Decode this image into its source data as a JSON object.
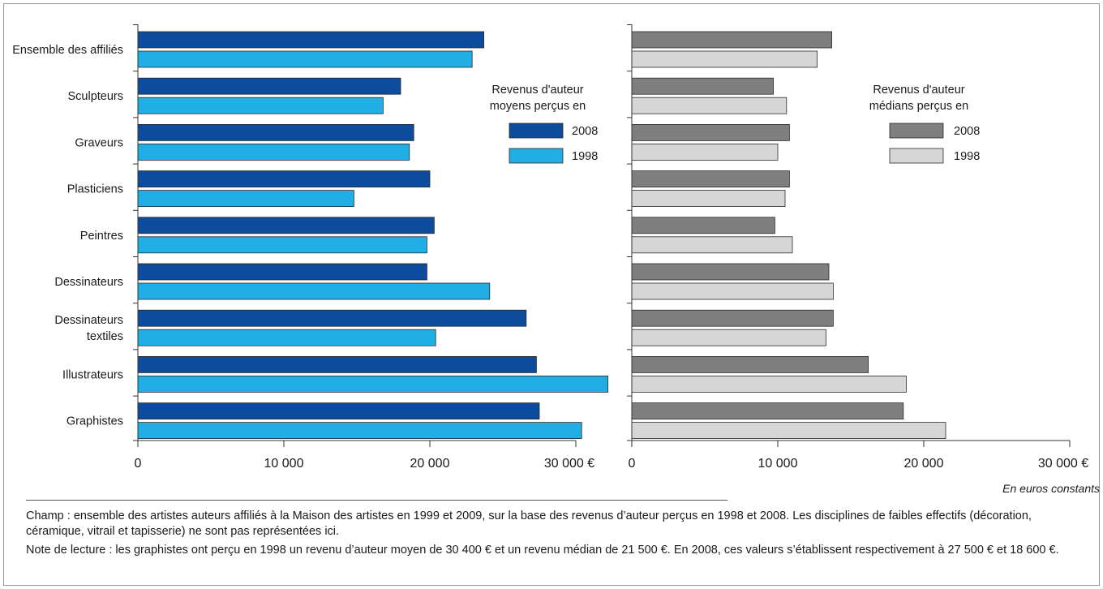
{
  "chart_data": [
    {
      "type": "bar",
      "orientation": "horizontal",
      "title": "",
      "xlabel": "",
      "ylabel": "",
      "categories": [
        "Ensemble des affiliés",
        "Sculpteurs",
        "Graveurs",
        "Plasticiens",
        "Peintres",
        "Dessinateurs",
        "Dessinateurs textiles",
        "Illustrateurs",
        "Graphistes"
      ],
      "category_lines": [
        [
          "Ensemble des affiliés"
        ],
        [
          "Sculpteurs"
        ],
        [
          "Graveurs"
        ],
        [
          "Plasticiens"
        ],
        [
          "Peintres"
        ],
        [
          "Dessinateurs"
        ],
        [
          "Dessinateurs",
          "textiles"
        ],
        [
          "Illustrateurs"
        ],
        [
          "Graphistes"
        ]
      ],
      "legend_title": [
        "Revenus d'auteur",
        "moyens perçus en"
      ],
      "legend_position": "top-right",
      "series": [
        {
          "name": "2008",
          "color": "#0d4c9c",
          "values": [
            23700,
            18000,
            18900,
            20000,
            20300,
            19800,
            26600,
            27300,
            27500
          ]
        },
        {
          "name": "1998",
          "color": "#20aee4",
          "values": [
            22900,
            16800,
            18600,
            14800,
            19800,
            24100,
            20400,
            32200,
            30400
          ]
        }
      ],
      "xlim": [
        0,
        30000
      ],
      "xticks": [
        0,
        10000,
        20000,
        30000
      ],
      "xtick_labels": [
        "0",
        "10 000",
        "20 000",
        "30 000 €"
      ]
    },
    {
      "type": "bar",
      "orientation": "horizontal",
      "title": "",
      "xlabel": "",
      "ylabel": "",
      "categories": [
        "Ensemble des affiliés",
        "Sculpteurs",
        "Graveurs",
        "Plasticiens",
        "Peintres",
        "Dessinateurs",
        "Dessinateurs textiles",
        "Illustrateurs",
        "Graphistes"
      ],
      "legend_title": [
        "Revenus d'auteur",
        "médians perçus en"
      ],
      "legend_position": "top-right",
      "series": [
        {
          "name": "2008",
          "color": "#7f7f7f",
          "values": [
            13700,
            9700,
            10800,
            10800,
            9800,
            13500,
            13800,
            16200,
            18600
          ]
        },
        {
          "name": "1998",
          "color": "#d6d6d6",
          "values": [
            12700,
            10600,
            10000,
            10500,
            11000,
            13800,
            13300,
            18800,
            21500
          ]
        }
      ],
      "xlim": [
        0,
        30000
      ],
      "xticks": [
        0,
        10000,
        20000,
        30000
      ],
      "xtick_labels": [
        "0",
        "10 000",
        "20 000",
        "30 000 €"
      ],
      "unit_note": "En euros constants"
    }
  ],
  "notes": {
    "champ": "Champ : ensemble des artistes auteurs affiliés à la Maison des artistes en 1999 et 2009, sur la base des revenus d’auteur perçus en 1998 et 2008. Les disciplines de faibles effectifs (décoration, céramique, vitrail et tapisserie) ne sont pas représentées ici.",
    "lecture": "Note de lecture : les graphistes ont perçu en 1998 un revenu d’auteur moyen de 30 400 € et un revenu médian de 21 500 €. En 2008, ces valeurs s’établissent respectivement à 27 500 € et 18 600 €."
  }
}
